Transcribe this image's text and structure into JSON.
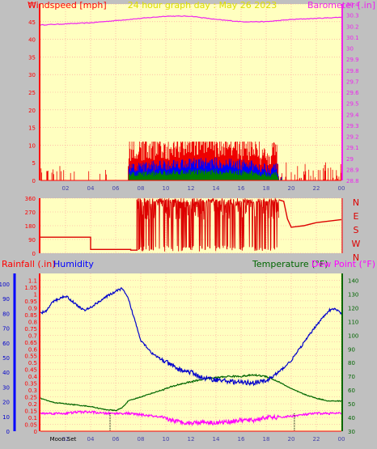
{
  "colors": {
    "plot_bg": "#ffffc0",
    "grid": "#ff9999",
    "wind": "#ff0000",
    "gust": "#ee0000",
    "wind_blue": "#0000ff",
    "wind_green": "#008000",
    "baro": "#ee22ee",
    "dir": "#dd0000",
    "rain": "#0000ff",
    "humidity": "#0000cc",
    "temperature": "#006600",
    "dewpoint": "#ff00ff",
    "moon": "#000000"
  },
  "chart_data": [
    {
      "type": "line",
      "title": "24 hour graph day : May 26 2023",
      "left_label": "Windspeed [mph]",
      "right_label": "Barometer [.in]",
      "x_ticks": [
        "02",
        "04",
        "06",
        "08",
        "10",
        "12",
        "14",
        "16",
        "18",
        "20",
        "22",
        "00"
      ],
      "y_left_ticks": [
        "0",
        "5",
        "10",
        "15",
        "20",
        "25",
        "30",
        "35",
        "40",
        "45",
        "50"
      ],
      "y_left_range": [
        0,
        50
      ],
      "y_right_ticks": [
        "28.8",
        "28.9",
        "29",
        "29.1",
        "29.2",
        "29.3",
        "29.4",
        "29.5",
        "29.6",
        "29.7",
        "29.8",
        "29.9",
        "30",
        "30.1",
        "30.2",
        "30.3",
        "30.4"
      ],
      "y_right_range": [
        28.8,
        30.4
      ],
      "grid": true,
      "series": [
        {
          "axis": "right",
          "x": [
            0,
            2,
            4,
            6,
            8,
            10,
            11,
            12,
            14,
            16,
            18,
            20,
            22,
            24
          ],
          "y": [
            30.21,
            30.22,
            30.23,
            30.25,
            30.27,
            30.29,
            30.29,
            30.29,
            30.26,
            30.24,
            30.24,
            30.26,
            30.27,
            30.28
          ]
        }
      ]
    },
    {
      "type": "line",
      "y_left_ticks": [
        "0",
        "90",
        "180",
        "270",
        "360"
      ],
      "y_left_range": [
        0,
        360
      ],
      "y_right_ticks": [
        "N",
        "W",
        "S",
        "E",
        "N"
      ],
      "series": [
        {
          "x": [
            0,
            4.0,
            4.0,
            7.2,
            7.2,
            7.7,
            7.7
          ],
          "y": [
            105,
            105,
            25,
            25,
            20,
            20,
            350
          ]
        },
        {
          "x": [
            19.0,
            19.4,
            19.7,
            20.0,
            20.5,
            21.0,
            22.0,
            23.0,
            24.0
          ],
          "y": [
            350,
            340,
            225,
            170,
            175,
            180,
            200,
            210,
            220
          ]
        }
      ]
    },
    {
      "type": "line",
      "left_label_rain": "Rainfall (.in)",
      "left_label_humidity": "Humidity",
      "right_label_temperature": "Temperature (°F)",
      "right_label_dewpoint": "Dew Point (°F)",
      "x_ticks": [
        "02",
        "04",
        "06",
        "08",
        "10",
        "12",
        "14",
        "16",
        "18",
        "20",
        "22",
        "00"
      ],
      "moon_label": "Moon Set",
      "y_humidity_ticks": [
        "0",
        "10",
        "20",
        "30",
        "40",
        "50",
        "60",
        "70",
        "80",
        "90",
        "100"
      ],
      "y_humidity_range": [
        0,
        100
      ],
      "y_rain_ticks": [
        "0",
        "0.05",
        "0.1",
        "0.15",
        "0.2",
        "0.25",
        "0.3",
        "0.35",
        "0.4",
        "0.45",
        "0.5",
        "0.55",
        "0.6",
        "0.65",
        "0.7",
        "0.75",
        "0.8",
        "0.85",
        "0.9",
        "0.95",
        "1",
        "1.05",
        "1.1"
      ],
      "y_rain_range": [
        0,
        1.15
      ],
      "y_temp_ticks": [
        "30",
        "40",
        "50",
        "60",
        "70",
        "80",
        "90",
        "100",
        "110",
        "120",
        "130",
        "140"
      ],
      "y_temp_range": [
        30,
        145
      ],
      "series": [
        {
          "name": "Humidity",
          "x": [
            0,
            0.5,
            1,
            2,
            3,
            3.5,
            4,
            5,
            6,
            6.5,
            7,
            8,
            9,
            10,
            11,
            12,
            13,
            14,
            15,
            16,
            17,
            18,
            18.5,
            19,
            20,
            21,
            22,
            23,
            23.5,
            24
          ],
          "y": [
            80,
            82,
            88,
            92,
            85,
            82,
            84,
            90,
            95,
            97,
            90,
            62,
            52,
            47,
            42,
            40,
            36,
            35,
            34,
            33,
            33,
            34,
            37,
            40,
            48,
            60,
            72,
            82,
            83,
            80
          ]
        },
        {
          "name": "Temperature",
          "x": [
            0,
            1,
            2,
            3,
            4,
            5,
            6,
            6.5,
            7,
            8,
            9,
            10,
            11,
            12,
            13,
            14,
            15,
            16,
            17,
            18,
            19,
            20,
            21,
            22,
            23,
            24
          ],
          "y": [
            54,
            51,
            50,
            49,
            48,
            46,
            45,
            47,
            52,
            55,
            58,
            61,
            64,
            66,
            68,
            69,
            70,
            70,
            71,
            70,
            66,
            61,
            57,
            54,
            52,
            52
          ]
        },
        {
          "name": "Dew Point",
          "x": [
            0,
            1,
            2,
            3,
            4,
            5,
            6,
            7,
            8,
            9,
            10,
            11,
            12,
            13,
            14,
            15,
            16,
            17,
            18,
            19,
            20,
            21,
            22,
            23,
            24
          ],
          "y": [
            43,
            43,
            43,
            44,
            44,
            43,
            43,
            43,
            42,
            41,
            39,
            37,
            36,
            37,
            36,
            37,
            38,
            38,
            40,
            40,
            41,
            42,
            43,
            43,
            43
          ]
        }
      ],
      "moon_markers_x": [
        5.55,
        20.25
      ]
    }
  ]
}
